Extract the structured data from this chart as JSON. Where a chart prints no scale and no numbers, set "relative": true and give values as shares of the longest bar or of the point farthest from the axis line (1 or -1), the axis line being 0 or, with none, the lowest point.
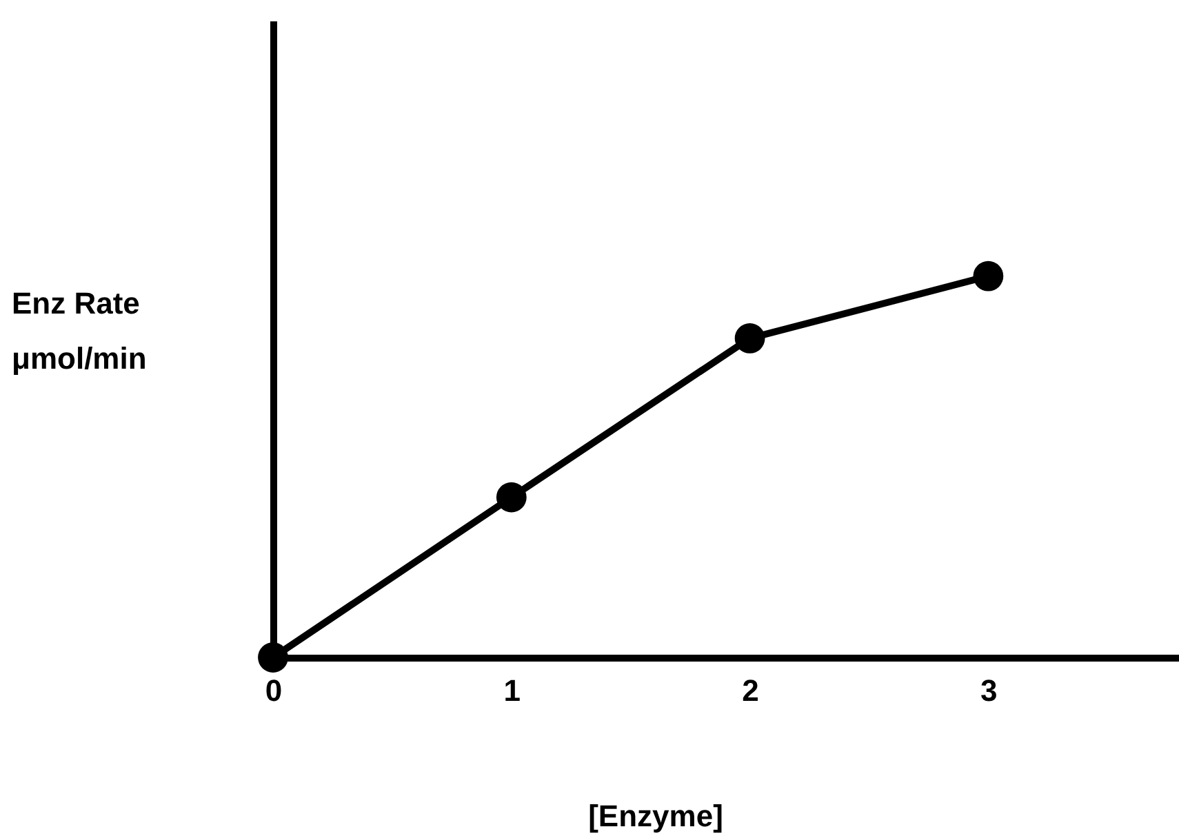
{
  "chart_data": {
    "type": "line",
    "xlabel": "[Enzyme]",
    "ylabel": "Enz Rate\nμmol/min",
    "x": [
      0,
      1,
      2,
      3
    ],
    "series": [
      {
        "color": "#000000",
        "values": [
          0,
          0.42,
          0.837,
          1
        ]
      }
    ],
    "relative": true,
    "xlim": [
      0,
      3.8
    ],
    "xticks": [
      0,
      1,
      2,
      3
    ],
    "marker": "circle",
    "line_style": "solid"
  }
}
